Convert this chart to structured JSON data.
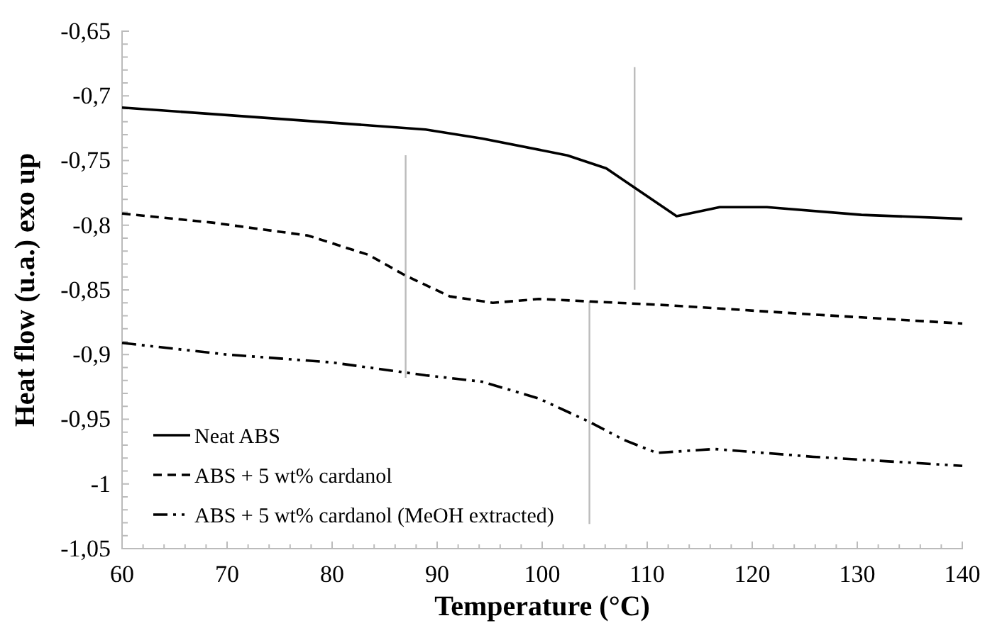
{
  "chart_data": {
    "type": "line",
    "xlabel": "Temperature (°C)",
    "ylabel": "Heat flow (u.a.) exo up",
    "xlim": [
      60,
      140
    ],
    "ylim": [
      -1.05,
      -0.65
    ],
    "xticks": [
      60,
      {
        "value": 62,
        "label": null
      },
      {
        "value": 64,
        "label": null
      },
      {
        "value": 66,
        "label": null
      },
      {
        "value": 68,
        "label": null
      },
      70,
      {
        "value": 72,
        "label": null
      },
      {
        "value": 74,
        "label": null
      },
      {
        "value": 76,
        "label": null
      },
      {
        "value": 78,
        "label": null
      },
      80,
      {
        "value": 82,
        "label": null
      },
      {
        "value": 84,
        "label": null
      },
      {
        "value": 86,
        "label": null
      },
      {
        "value": 88,
        "label": null
      },
      90,
      {
        "value": 92,
        "label": null
      },
      {
        "value": 94,
        "label": null
      },
      {
        "value": 96,
        "label": null
      },
      {
        "value": 98,
        "label": null
      },
      100,
      {
        "value": 102,
        "label": null
      },
      {
        "value": 104,
        "label": null
      },
      {
        "value": 106,
        "label": null
      },
      {
        "value": 108,
        "label": null
      },
      110,
      {
        "value": 112,
        "label": null
      },
      {
        "value": 114,
        "label": null
      },
      {
        "value": 116,
        "label": null
      },
      {
        "value": 118,
        "label": null
      },
      120,
      {
        "value": 122,
        "label": null
      },
      {
        "value": 124,
        "label": null
      },
      {
        "value": 126,
        "label": null
      },
      {
        "value": 128,
        "label": null
      },
      130,
      {
        "value": 132,
        "label": null
      },
      {
        "value": 134,
        "label": null
      },
      {
        "value": 136,
        "label": null
      },
      {
        "value": 138,
        "label": null
      },
      140
    ],
    "yticks": [
      {
        "value": -1.05,
        "label": "-1,05"
      },
      {
        "value": -1.04,
        "label": null
      },
      {
        "value": -1.03,
        "label": null
      },
      {
        "value": -1.02,
        "label": null
      },
      {
        "value": -1.01,
        "label": null
      },
      {
        "value": -1,
        "label": "-1"
      },
      {
        "value": -0.99,
        "label": null
      },
      {
        "value": -0.98,
        "label": null
      },
      {
        "value": -0.97,
        "label": null
      },
      {
        "value": -0.96,
        "label": null
      },
      {
        "value": -0.95,
        "label": "-0,95"
      },
      {
        "value": -0.94,
        "label": null
      },
      {
        "value": -0.93,
        "label": null
      },
      {
        "value": -0.92,
        "label": null
      },
      {
        "value": -0.91,
        "label": null
      },
      {
        "value": -0.9,
        "label": "-0,9"
      },
      {
        "value": -0.89,
        "label": null
      },
      {
        "value": -0.88,
        "label": null
      },
      {
        "value": -0.87,
        "label": null
      },
      {
        "value": -0.86,
        "label": null
      },
      {
        "value": -0.85,
        "label": "-0,85"
      },
      {
        "value": -0.84,
        "label": null
      },
      {
        "value": -0.83,
        "label": null
      },
      {
        "value": -0.82,
        "label": null
      },
      {
        "value": -0.81,
        "label": null
      },
      {
        "value": -0.8,
        "label": "-0,8"
      },
      {
        "value": -0.79,
        "label": null
      },
      {
        "value": -0.78,
        "label": null
      },
      {
        "value": -0.77,
        "label": null
      },
      {
        "value": -0.76,
        "label": null
      },
      {
        "value": -0.75,
        "label": "-0,75"
      },
      {
        "value": -0.74,
        "label": null
      },
      {
        "value": -0.73,
        "label": null
      },
      {
        "value": -0.72,
        "label": null
      },
      {
        "value": -0.71,
        "label": null
      },
      {
        "value": -0.7,
        "label": "-0,7"
      },
      {
        "value": -0.69,
        "label": null
      },
      {
        "value": -0.68,
        "label": null
      },
      {
        "value": -0.67,
        "label": null
      },
      {
        "value": -0.66,
        "label": null
      },
      {
        "value": -0.65,
        "label": "-0,65"
      }
    ],
    "legend": "bottom left",
    "grid": false,
    "marker": "none",
    "series": [
      {
        "name": "Neat ABS",
        "color": "#000000",
        "line_style": "solid",
        "x": [
          60,
          75.4,
          88.9,
          94.3,
          102.4,
          106.1,
          108.8,
          112.8,
          116.9,
          121.4,
          130.4,
          140
        ],
        "values": [
          -0.709,
          -0.718,
          -0.726,
          -0.733,
          -0.746,
          -0.756,
          -0.771,
          -0.793,
          -0.786,
          -0.786,
          -0.792,
          -0.795
        ]
      },
      {
        "name": "ABS + 5 wt% cardanol",
        "color": "#000000",
        "line_style": "dashed",
        "x": [
          60,
          68.6,
          77.7,
          83.5,
          87,
          91.2,
          95.3,
          99.7,
          112.3,
          125.8,
          140
        ],
        "values": [
          -0.791,
          -0.798,
          -0.808,
          -0.823,
          -0.839,
          -0.855,
          -0.86,
          -0.857,
          -0.862,
          -0.869,
          -0.876
        ]
      },
      {
        "name": "ABS + 5 wt% cardanol (MeOH extracted)",
        "color": "#000000",
        "line_style": "dashdot",
        "x": [
          60,
          70,
          79.9,
          88.9,
          94.3,
          99.7,
          104.5,
          107.8,
          110.9,
          116.4,
          125.8,
          140
        ],
        "values": [
          -0.891,
          -0.9,
          -0.906,
          -0.916,
          -0.921,
          -0.934,
          -0.952,
          -0.966,
          -0.976,
          -0.973,
          -0.979,
          -0.986
        ]
      }
    ],
    "ref_lines": [
      {
        "axis": "x",
        "value": 108.8,
        "color": "#bbbbbb"
      },
      {
        "axis": "x",
        "value": 87,
        "color": "#bbbbbb"
      },
      {
        "axis": "x",
        "value": 104.5,
        "color": "#bbbbbb"
      }
    ]
  }
}
